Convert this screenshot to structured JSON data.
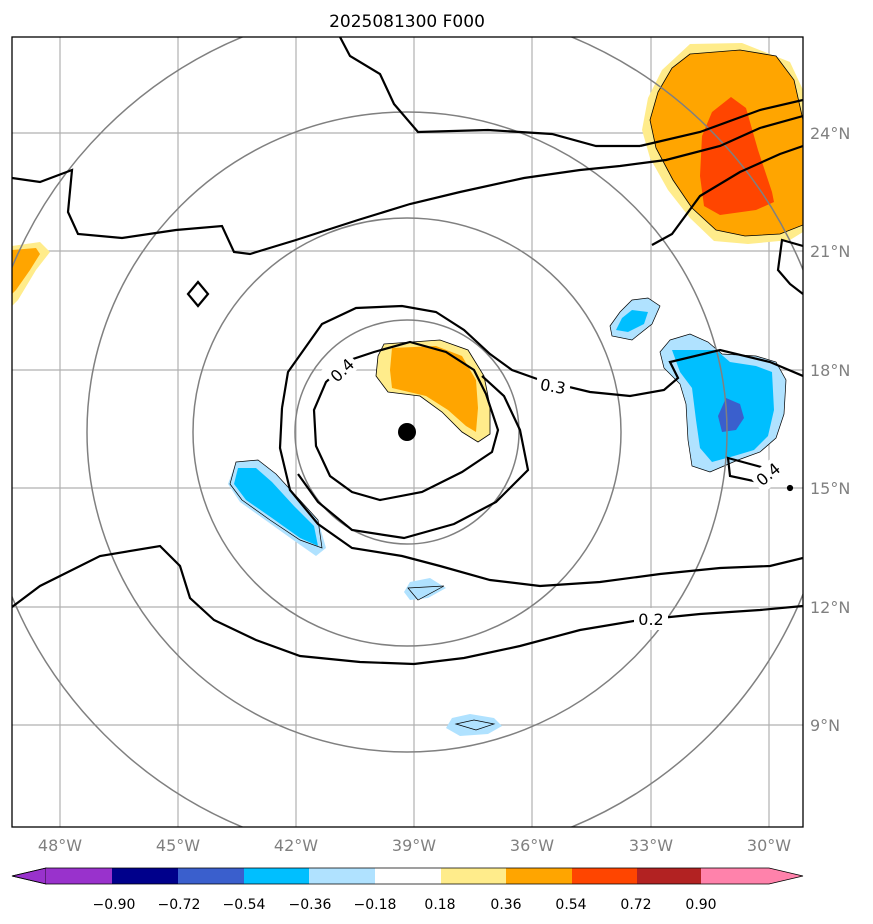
{
  "title": "2025081300 F000",
  "lon_labels": [
    "48°W",
    "45°W",
    "42°W",
    "39°W",
    "36°W",
    "33°W",
    "30°W"
  ],
  "lat_labels": [
    "24°N",
    "21°N",
    "18°N",
    "15°N",
    "12°N",
    "9°N"
  ],
  "contour_labels": [
    "0.4",
    "0.3",
    "0.4",
    "0.2"
  ],
  "colorbar": {
    "tick_labels": [
      "−0.90",
      "−0.72",
      "−0.54",
      "−0.36",
      "−0.18",
      "0.18",
      "0.36",
      "0.54",
      "0.72",
      "0.90"
    ],
    "colors": [
      "#9932CC",
      "#00008B",
      "#3A5FCD",
      "#00BFFF",
      "#B0E2FF",
      "#FFFFFF",
      "#FFEC8B",
      "#FFA500",
      "#FF4500",
      "#B22222",
      "#FF82AB"
    ]
  },
  "center_marker": {
    "lon": -39.2,
    "lat": 16.4
  },
  "range_ring_color": "#808080",
  "grid_color": "#b0b0b0"
}
